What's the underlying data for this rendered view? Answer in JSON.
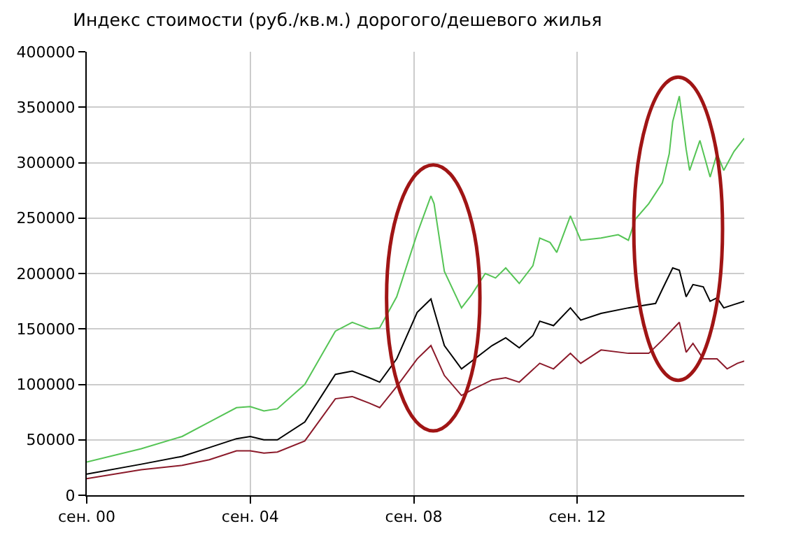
{
  "chart_data": {
    "type": "line",
    "title": "Индекс стоимости (руб./кв.м.) дорогого/дешевого жилья",
    "xlim": [
      "2000-09",
      "2016-10"
    ],
    "xticks": [
      {
        "value": "2000-09",
        "label": "сен. 00"
      },
      {
        "value": "2004-09",
        "label": "сен. 04"
      },
      {
        "value": "2008-09",
        "label": "сен. 08"
      },
      {
        "value": "2012-09",
        "label": "сен. 12"
      }
    ],
    "ylim": [
      0,
      400000
    ],
    "yticks": [
      0,
      50000,
      100000,
      150000,
      200000,
      250000,
      300000,
      350000,
      400000
    ],
    "grid": true,
    "marker": "none",
    "line_style": "solid",
    "series": [
      {
        "color": "#55c455",
        "x": [
          "2000-09",
          "2002-01",
          "2003-01",
          "2003-09",
          "2004-05",
          "2004-09",
          "2005-01",
          "2005-05",
          "2006-01",
          "2006-10",
          "2007-03",
          "2007-08",
          "2007-11",
          "2008-04",
          "2008-10",
          "2009-02",
          "2009-03",
          "2009-06",
          "2009-11",
          "2010-02",
          "2010-06",
          "2010-09",
          "2010-12",
          "2011-04",
          "2011-08",
          "2011-10",
          "2012-01",
          "2012-03",
          "2012-07",
          "2012-10",
          "2013-04",
          "2013-09",
          "2013-12",
          "2014-02",
          "2014-06",
          "2014-10",
          "2014-12",
          "2015-01",
          "2015-03",
          "2015-05",
          "2015-06",
          "2015-09",
          "2015-12",
          "2016-02",
          "2016-04",
          "2016-07",
          "2016-10"
        ],
        "values": [
          30000,
          42000,
          53000,
          66000,
          79000,
          80000,
          76000,
          78000,
          100000,
          148000,
          156000,
          150000,
          151000,
          179000,
          236000,
          270000,
          263000,
          202000,
          169000,
          181000,
          200000,
          196000,
          205000,
          191000,
          207000,
          232000,
          228000,
          219000,
          252000,
          230000,
          232000,
          235000,
          230000,
          249000,
          263000,
          282000,
          308000,
          337000,
          360000,
          312000,
          293000,
          320000,
          287000,
          308000,
          293000,
          310000,
          322000
        ]
      },
      {
        "color": "#000000",
        "x": [
          "2000-09",
          "2002-01",
          "2003-01",
          "2003-09",
          "2004-05",
          "2004-09",
          "2005-01",
          "2005-05",
          "2006-01",
          "2006-10",
          "2007-03",
          "2007-08",
          "2007-11",
          "2008-04",
          "2008-10",
          "2009-02",
          "2009-03",
          "2009-06",
          "2009-11",
          "2010-02",
          "2010-08",
          "2010-12",
          "2011-04",
          "2011-08",
          "2011-10",
          "2012-02",
          "2012-07",
          "2012-10",
          "2013-04",
          "2013-12",
          "2014-02",
          "2014-08",
          "2014-10",
          "2015-01",
          "2015-03",
          "2015-05",
          "2015-07",
          "2015-10",
          "2015-12",
          "2016-02",
          "2016-04",
          "2016-07",
          "2016-10"
        ],
        "values": [
          19000,
          28000,
          35000,
          43000,
          51000,
          53000,
          50000,
          50000,
          66000,
          109000,
          112000,
          106000,
          102000,
          123000,
          165000,
          177000,
          167000,
          135000,
          114000,
          121000,
          135000,
          142000,
          133000,
          144000,
          157000,
          153000,
          169000,
          158000,
          164000,
          169000,
          170000,
          173000,
          186000,
          205000,
          203000,
          179000,
          190000,
          188000,
          175000,
          178000,
          169000,
          172000,
          175000
        ]
      },
      {
        "color": "#8b1a2a",
        "x": [
          "2000-09",
          "2002-01",
          "2003-01",
          "2003-09",
          "2004-05",
          "2004-09",
          "2005-01",
          "2005-05",
          "2006-01",
          "2006-10",
          "2007-03",
          "2007-08",
          "2007-11",
          "2008-04",
          "2008-10",
          "2009-02",
          "2009-06",
          "2009-11",
          "2010-02",
          "2010-08",
          "2010-12",
          "2011-04",
          "2011-10",
          "2012-02",
          "2012-07",
          "2012-10",
          "2013-04",
          "2013-12",
          "2014-06",
          "2014-10",
          "2015-03",
          "2015-05",
          "2015-07",
          "2015-10",
          "2016-02",
          "2016-05",
          "2016-08",
          "2016-10"
        ],
        "values": [
          15000,
          23000,
          27000,
          32000,
          40000,
          40000,
          38000,
          39000,
          49000,
          87000,
          89000,
          83000,
          79000,
          98000,
          123000,
          135000,
          108000,
          90000,
          95000,
          104000,
          106000,
          102000,
          119000,
          114000,
          128000,
          119000,
          131000,
          128000,
          128000,
          140000,
          156000,
          129000,
          137000,
          123000,
          123000,
          114000,
          119000,
          121000
        ]
      }
    ]
  }
}
